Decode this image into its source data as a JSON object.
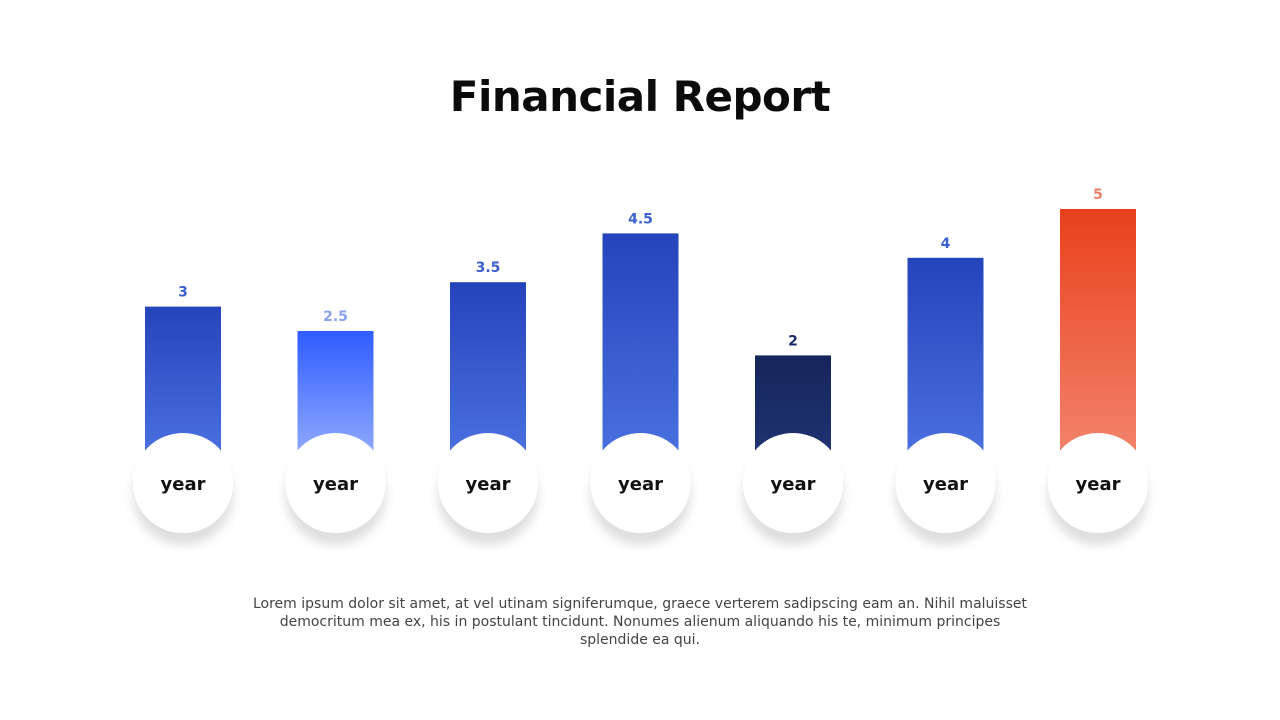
{
  "title": "Financial Report",
  "description": "Lorem ipsum dolor sit amet, at vel utinam signiferumque, graece verterem sadipscing eam an. Nihil maluisset democritum mea ex, his in postulant tincidunt. Nonumes alienum aliquando his te, minimum principes splendide ea qui.",
  "chart_data": {
    "type": "bar",
    "categories": [
      "year",
      "year",
      "year",
      "year",
      "year",
      "year",
      "year"
    ],
    "values": [
      3,
      2.5,
      3.5,
      4.5,
      2,
      4,
      5
    ],
    "value_labels": [
      "3",
      "2.5",
      "3.5",
      "4.5",
      "2",
      "4",
      "5"
    ],
    "bar_colors": [
      {
        "top": "#2444bb",
        "bottom": "#4a6fdf",
        "label": "#3a5fd0"
      },
      {
        "top": "#2f5cff",
        "bottom": "#8ea8ff",
        "label": "#8aa2f0"
      },
      {
        "top": "#2444bb",
        "bottom": "#4a6fdf",
        "label": "#3a5fd0"
      },
      {
        "top": "#2444bb",
        "bottom": "#4a6fdf",
        "label": "#3a5fd0"
      },
      {
        "top": "#16265a",
        "bottom": "#1f3272",
        "label": "#1b2a66"
      },
      {
        "top": "#2444bb",
        "bottom": "#4a6fdf",
        "label": "#3a5fd0"
      },
      {
        "top": "#e8401c",
        "bottom": "#f3836b",
        "label": "#ef8068"
      }
    ],
    "ylim": [
      0,
      5
    ],
    "grid": false,
    "legend": "none"
  }
}
